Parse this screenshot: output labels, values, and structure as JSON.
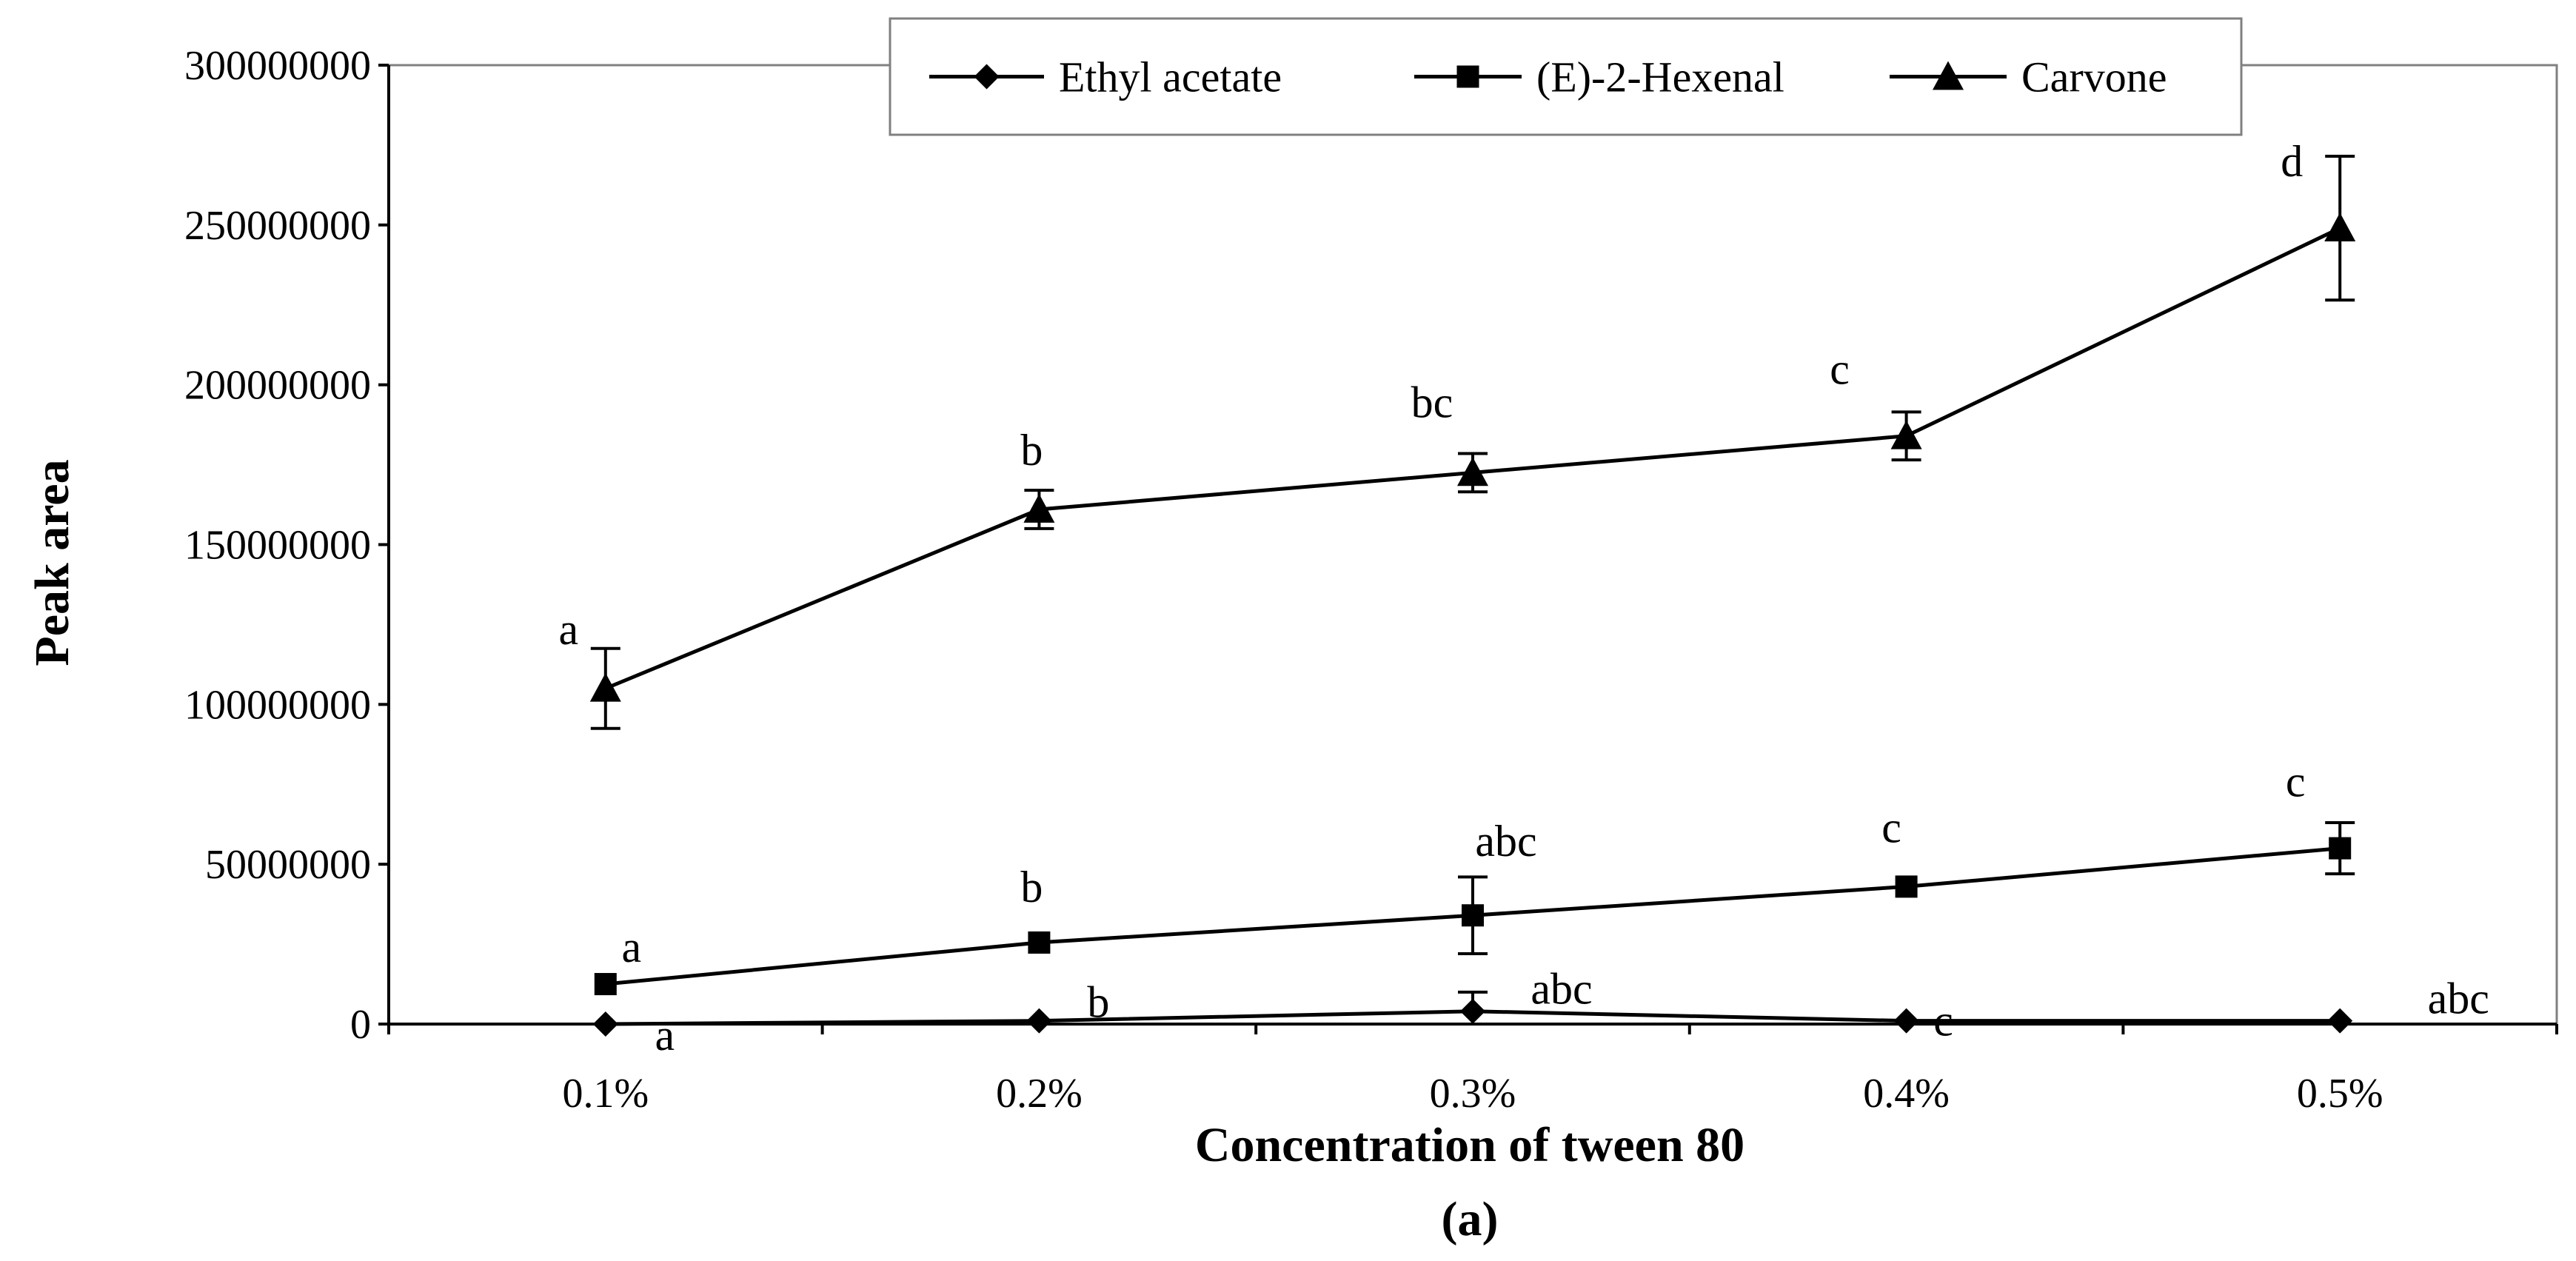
{
  "chart_data": {
    "type": "line",
    "categories": [
      "0.1%",
      "0.2%",
      "0.3%",
      "0.4%",
      "0.5%"
    ],
    "xlabel": "Concentration of tween 80",
    "ylabel": "Peak area",
    "subtitle": "(a)",
    "ylim": [
      0,
      300000000
    ],
    "yticks": [
      "0",
      "50000000",
      "100000000",
      "150000000",
      "200000000",
      "250000000",
      "300000000"
    ],
    "legend_position": "top-right",
    "grid": false,
    "series": [
      {
        "name": "Ethyl acetate",
        "marker": "diamond",
        "values": [
          0,
          1000000,
          4000000,
          1000000,
          1000000
        ],
        "errors": [
          0,
          0,
          6000000,
          0,
          0
        ],
        "labels": [
          "a",
          "b",
          "abc",
          "c",
          "abc"
        ]
      },
      {
        "name": "(E)-2-Hexenal",
        "marker": "square",
        "values": [
          12500000,
          25500000,
          34000000,
          43000000,
          55000000
        ],
        "errors": [
          0,
          0,
          12000000,
          0,
          8000000
        ],
        "labels": [
          "a",
          "b",
          "abc",
          "c",
          "c"
        ]
      },
      {
        "name": "Carvone",
        "marker": "triangle",
        "values": [
          105000000,
          161000000,
          172500000,
          184000000,
          249000000
        ],
        "errors": [
          12500000,
          6000000,
          6000000,
          7500000,
          22500000
        ],
        "labels": [
          "a",
          "b",
          "bc",
          "c",
          "d"
        ]
      }
    ]
  }
}
